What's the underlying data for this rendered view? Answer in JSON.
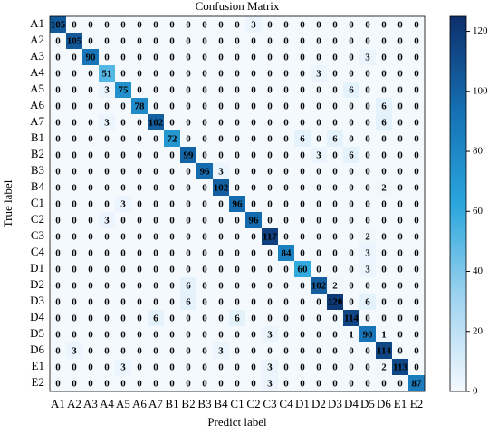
{
  "chart_data": {
    "type": "heatmap",
    "title": "Confusion Matrix",
    "x_label": "Predict label",
    "y_label": "True label",
    "categories": [
      "A1",
      "A2",
      "A3",
      "A4",
      "A5",
      "A6",
      "A7",
      "B1",
      "B2",
      "B3",
      "B4",
      "C1",
      "C2",
      "C3",
      "C4",
      "D1",
      "D2",
      "D3",
      "D4",
      "D5",
      "D6",
      "E1",
      "E2"
    ],
    "values": [
      [
        105,
        0,
        0,
        0,
        0,
        0,
        0,
        0,
        0,
        0,
        0,
        0,
        3,
        0,
        0,
        0,
        0,
        0,
        0,
        0,
        0,
        0,
        0
      ],
      [
        0,
        105,
        0,
        0,
        0,
        0,
        0,
        0,
        0,
        0,
        0,
        0,
        0,
        0,
        0,
        0,
        0,
        0,
        0,
        0,
        0,
        0,
        0
      ],
      [
        0,
        0,
        90,
        0,
        0,
        0,
        0,
        0,
        0,
        0,
        0,
        0,
        0,
        0,
        0,
        0,
        0,
        0,
        0,
        3,
        0,
        0,
        0
      ],
      [
        0,
        0,
        0,
        51,
        0,
        0,
        0,
        0,
        0,
        0,
        0,
        0,
        0,
        0,
        0,
        0,
        3,
        0,
        0,
        0,
        0,
        0,
        0
      ],
      [
        0,
        0,
        0,
        3,
        75,
        0,
        0,
        0,
        0,
        0,
        0,
        0,
        0,
        0,
        0,
        0,
        0,
        0,
        6,
        0,
        0,
        0,
        0
      ],
      [
        0,
        0,
        0,
        0,
        0,
        78,
        0,
        0,
        0,
        0,
        0,
        0,
        0,
        0,
        0,
        0,
        0,
        0,
        0,
        0,
        6,
        0,
        0
      ],
      [
        0,
        0,
        0,
        3,
        0,
        0,
        102,
        0,
        0,
        0,
        0,
        0,
        0,
        0,
        0,
        0,
        0,
        0,
        0,
        0,
        6,
        0,
        0
      ],
      [
        0,
        0,
        0,
        0,
        0,
        0,
        0,
        72,
        0,
        0,
        0,
        0,
        0,
        0,
        0,
        6,
        0,
        6,
        0,
        0,
        0,
        0,
        0
      ],
      [
        0,
        0,
        0,
        0,
        0,
        0,
        0,
        0,
        99,
        0,
        0,
        0,
        0,
        0,
        0,
        0,
        3,
        0,
        6,
        0,
        0,
        0,
        0
      ],
      [
        0,
        0,
        0,
        0,
        0,
        0,
        0,
        0,
        0,
        96,
        3,
        0,
        0,
        0,
        0,
        0,
        0,
        0,
        0,
        0,
        0,
        0,
        0
      ],
      [
        0,
        0,
        0,
        0,
        0,
        0,
        0,
        0,
        0,
        0,
        102,
        0,
        0,
        0,
        0,
        0,
        0,
        0,
        0,
        0,
        2,
        0,
        0
      ],
      [
        0,
        0,
        0,
        0,
        3,
        0,
        0,
        0,
        0,
        0,
        0,
        96,
        0,
        0,
        0,
        0,
        0,
        0,
        0,
        0,
        0,
        0,
        0
      ],
      [
        0,
        0,
        0,
        3,
        0,
        0,
        0,
        0,
        0,
        0,
        0,
        0,
        96,
        0,
        0,
        0,
        0,
        0,
        0,
        0,
        0,
        0,
        0
      ],
      [
        0,
        0,
        0,
        0,
        0,
        0,
        0,
        0,
        0,
        0,
        0,
        0,
        0,
        117,
        0,
        0,
        0,
        0,
        0,
        2,
        0,
        0,
        0
      ],
      [
        0,
        0,
        0,
        0,
        0,
        0,
        0,
        0,
        0,
        0,
        0,
        0,
        0,
        0,
        84,
        0,
        0,
        0,
        0,
        3,
        0,
        0,
        0
      ],
      [
        0,
        0,
        0,
        0,
        0,
        0,
        0,
        0,
        0,
        0,
        0,
        0,
        0,
        0,
        0,
        60,
        0,
        0,
        0,
        3,
        0,
        0,
        0
      ],
      [
        0,
        0,
        0,
        0,
        0,
        0,
        0,
        0,
        6,
        0,
        0,
        0,
        0,
        0,
        0,
        0,
        102,
        2,
        0,
        0,
        0,
        0,
        0
      ],
      [
        0,
        0,
        0,
        0,
        0,
        0,
        0,
        0,
        6,
        0,
        0,
        0,
        0,
        0,
        0,
        0,
        0,
        120,
        0,
        6,
        0,
        0,
        0
      ],
      [
        0,
        0,
        0,
        0,
        0,
        0,
        6,
        0,
        0,
        0,
        0,
        6,
        0,
        0,
        0,
        0,
        0,
        0,
        114,
        0,
        0,
        0,
        0
      ],
      [
        0,
        0,
        0,
        0,
        0,
        0,
        0,
        0,
        0,
        0,
        0,
        0,
        0,
        3,
        0,
        0,
        0,
        0,
        1,
        90,
        1,
        0,
        0
      ],
      [
        0,
        3,
        0,
        0,
        0,
        0,
        0,
        0,
        0,
        0,
        3,
        0,
        0,
        0,
        0,
        0,
        0,
        0,
        0,
        0,
        114,
        0,
        0
      ],
      [
        0,
        0,
        0,
        0,
        3,
        0,
        0,
        0,
        0,
        0,
        0,
        0,
        0,
        3,
        0,
        0,
        0,
        0,
        0,
        0,
        2,
        113,
        0
      ],
      [
        0,
        0,
        0,
        0,
        0,
        0,
        0,
        0,
        0,
        0,
        0,
        0,
        0,
        3,
        0,
        0,
        0,
        0,
        0,
        0,
        0,
        0,
        87
      ]
    ],
    "zlim": [
      0,
      125
    ],
    "colorbar_ticks": [
      0,
      20,
      40,
      60,
      80,
      100,
      120
    ],
    "colors": [
      "#f4f9fe",
      "#9fd3ef",
      "#2aa6dc",
      "#1570b3",
      "#0d2f6b"
    ]
  }
}
